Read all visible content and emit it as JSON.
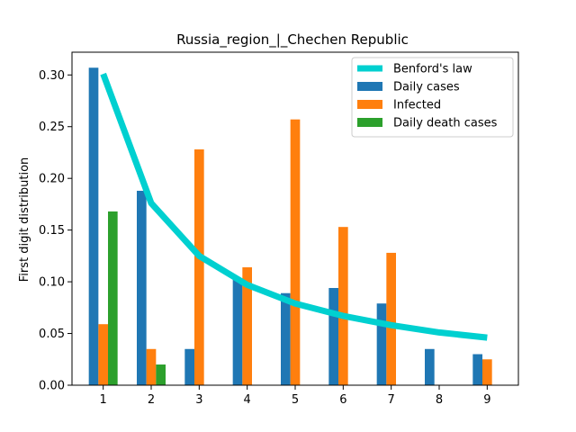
{
  "chart_data": {
    "type": "bar",
    "title": "Russia_region_|_Chechen Republic",
    "xlabel": "",
    "ylabel": "First digit distribution",
    "categories": [
      "1",
      "2",
      "3",
      "4",
      "5",
      "6",
      "7",
      "8",
      "9"
    ],
    "x": [
      1,
      2,
      3,
      4,
      5,
      6,
      7,
      8,
      9
    ],
    "xlim": [
      0.35,
      9.65
    ],
    "ylim": [
      0,
      0.322
    ],
    "yticks": [
      "0.00",
      "0.05",
      "0.10",
      "0.15",
      "0.20",
      "0.25",
      "0.30"
    ],
    "ytick_values": [
      0,
      0.05,
      0.1,
      0.15,
      0.2,
      0.25,
      0.3
    ],
    "grid": false,
    "legend_position": "top-right",
    "series": [
      {
        "name": "Daily cases",
        "kind": "bar",
        "color": "#1f77b4",
        "values": [
          0.307,
          0.188,
          0.035,
          0.103,
          0.089,
          0.094,
          0.079,
          0.035,
          0.03
        ]
      },
      {
        "name": "Infected",
        "kind": "bar",
        "color": "#ff7f0e",
        "values": [
          0.059,
          0.035,
          0.228,
          0.114,
          0.257,
          0.153,
          0.128,
          0.0,
          0.025
        ]
      },
      {
        "name": "Daily death cases",
        "kind": "bar",
        "color": "#2ca02c",
        "values": [
          0.168,
          0.02,
          0.0,
          0.0,
          0.0,
          0.0,
          0.0,
          0.0,
          0.0
        ]
      }
    ],
    "line_series": {
      "name": "Benford's law",
      "kind": "line",
      "color": "#00d0d0",
      "values": [
        0.301,
        0.176,
        0.125,
        0.097,
        0.079,
        0.067,
        0.058,
        0.051,
        0.046
      ]
    }
  }
}
